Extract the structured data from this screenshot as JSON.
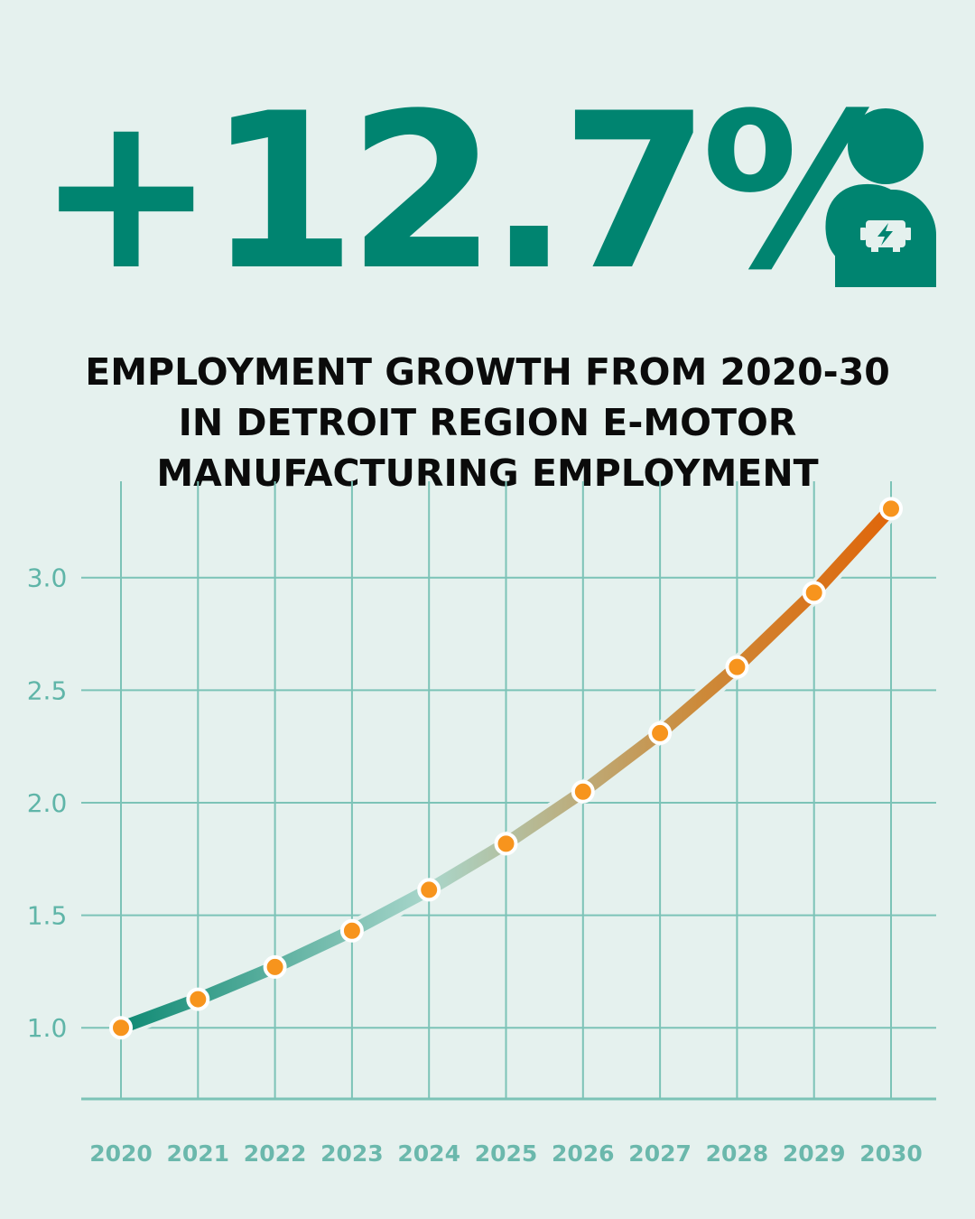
{
  "headline": {
    "value": "+12.7%",
    "icon": "person-motor-icon"
  },
  "subtitle": {
    "lines": [
      "EMPLOYMENT GROWTH FROM 2020-30",
      "IN DETROIT REGION E-MOTOR",
      "MANUFACTURING EMPLOYMENT"
    ]
  },
  "colors": {
    "background": "#e5f1ee",
    "brand_green": "#008470",
    "grid": "#7cc3b7",
    "tick_label": "#5fb5a8",
    "point_fill": "#f7941d",
    "line_start": "#0f8a74",
    "line_mid": "#a9d6cb",
    "line_end": "#e0660a"
  },
  "chart_data": {
    "type": "line",
    "title": "EMPLOYMENT GROWTH FROM 2020-30 IN DETROIT REGION E-MOTOR MANUFACTURING EMPLOYMENT",
    "xlabel": "",
    "ylabel": "",
    "x": [
      "2020",
      "2021",
      "2022",
      "2023",
      "2024",
      "2025",
      "2026",
      "2027",
      "2028",
      "2029",
      "2030"
    ],
    "series": [
      {
        "values": [
          1.0,
          1.127,
          1.27,
          1.431,
          1.613,
          1.818,
          2.049,
          2.309,
          2.603,
          2.933,
          3.306
        ]
      }
    ],
    "yticks": [
      "1.0",
      "1.5",
      "2.0",
      "2.5",
      "3.0"
    ],
    "ytick_values": [
      1.0,
      1.5,
      2.0,
      2.5,
      3.0
    ],
    "ylim": [
      0.684,
      3.428
    ],
    "grid": true,
    "legend": "none"
  }
}
